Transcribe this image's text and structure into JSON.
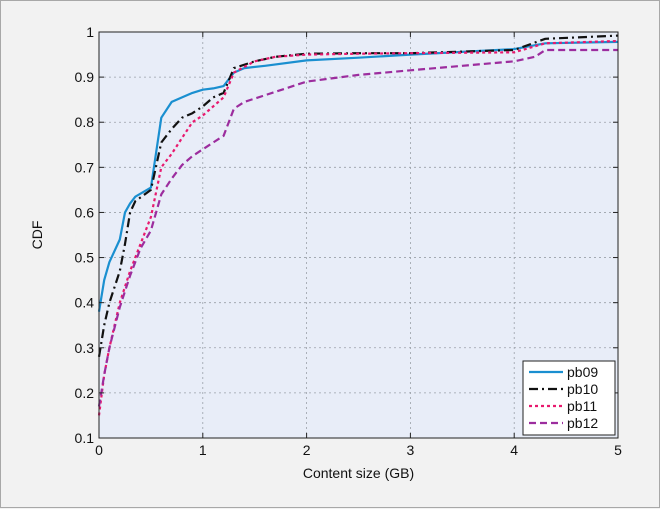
{
  "chart_data": {
    "type": "line",
    "title": "",
    "xlabel": "Content size (GB)",
    "ylabel": "CDF",
    "xlim": [
      0,
      5
    ],
    "ylim": [
      0.1,
      1.0
    ],
    "xticks": [
      0,
      1,
      2,
      3,
      4,
      5
    ],
    "yticks": [
      0.1,
      0.2,
      0.3,
      0.4,
      0.5,
      0.6,
      0.7,
      0.8,
      0.9,
      1
    ],
    "grid": true,
    "legend_position": "bottom-right",
    "plot_background": "#e8edf8",
    "series": [
      {
        "name": "pb09",
        "color": "#1a8fd0",
        "dash": "solid",
        "points": [
          [
            0,
            0.38
          ],
          [
            0.05,
            0.45
          ],
          [
            0.1,
            0.49
          ],
          [
            0.2,
            0.54
          ],
          [
            0.25,
            0.6
          ],
          [
            0.3,
            0.62
          ],
          [
            0.35,
            0.635
          ],
          [
            0.5,
            0.655
          ],
          [
            0.6,
            0.81
          ],
          [
            0.7,
            0.845
          ],
          [
            0.8,
            0.855
          ],
          [
            0.9,
            0.865
          ],
          [
            1.0,
            0.872
          ],
          [
            1.1,
            0.875
          ],
          [
            1.2,
            0.88
          ],
          [
            1.3,
            0.91
          ],
          [
            1.4,
            0.92
          ],
          [
            1.6,
            0.925
          ],
          [
            2.0,
            0.937
          ],
          [
            2.5,
            0.943
          ],
          [
            3.0,
            0.95
          ],
          [
            4.0,
            0.962
          ],
          [
            4.3,
            0.975
          ],
          [
            5.0,
            0.978
          ]
        ]
      },
      {
        "name": "pb10",
        "color": "#111111",
        "dash": "dashdot",
        "points": [
          [
            0,
            0.28
          ],
          [
            0.05,
            0.35
          ],
          [
            0.1,
            0.4
          ],
          [
            0.2,
            0.47
          ],
          [
            0.25,
            0.53
          ],
          [
            0.3,
            0.6
          ],
          [
            0.35,
            0.625
          ],
          [
            0.5,
            0.65
          ],
          [
            0.6,
            0.755
          ],
          [
            0.7,
            0.785
          ],
          [
            0.8,
            0.81
          ],
          [
            0.9,
            0.82
          ],
          [
            1.0,
            0.835
          ],
          [
            1.1,
            0.855
          ],
          [
            1.2,
            0.865
          ],
          [
            1.3,
            0.92
          ],
          [
            1.5,
            0.935
          ],
          [
            1.7,
            0.945
          ],
          [
            2.0,
            0.952
          ],
          [
            2.5,
            0.953
          ],
          [
            3.0,
            0.953
          ],
          [
            4.0,
            0.96
          ],
          [
            4.3,
            0.985
          ],
          [
            5.0,
            0.992
          ]
        ]
      },
      {
        "name": "pb11",
        "color": "#e8196e",
        "dash": "dot",
        "points": [
          [
            0,
            0.15
          ],
          [
            0.05,
            0.24
          ],
          [
            0.1,
            0.3
          ],
          [
            0.2,
            0.4
          ],
          [
            0.3,
            0.47
          ],
          [
            0.4,
            0.53
          ],
          [
            0.5,
            0.59
          ],
          [
            0.6,
            0.7
          ],
          [
            0.7,
            0.73
          ],
          [
            0.8,
            0.765
          ],
          [
            0.9,
            0.8
          ],
          [
            1.0,
            0.815
          ],
          [
            1.1,
            0.835
          ],
          [
            1.2,
            0.855
          ],
          [
            1.3,
            0.91
          ],
          [
            1.5,
            0.935
          ],
          [
            1.7,
            0.945
          ],
          [
            2.0,
            0.95
          ],
          [
            2.5,
            0.952
          ],
          [
            3.0,
            0.953
          ],
          [
            4.0,
            0.955
          ],
          [
            4.3,
            0.975
          ],
          [
            5.0,
            0.98
          ]
        ]
      },
      {
        "name": "pb12",
        "color": "#9c2d9e",
        "dash": "dashed",
        "points": [
          [
            0,
            0.17
          ],
          [
            0.05,
            0.24
          ],
          [
            0.1,
            0.3
          ],
          [
            0.2,
            0.39
          ],
          [
            0.3,
            0.46
          ],
          [
            0.4,
            0.52
          ],
          [
            0.5,
            0.56
          ],
          [
            0.6,
            0.64
          ],
          [
            0.7,
            0.675
          ],
          [
            0.8,
            0.705
          ],
          [
            0.9,
            0.725
          ],
          [
            1.0,
            0.74
          ],
          [
            1.1,
            0.755
          ],
          [
            1.2,
            0.77
          ],
          [
            1.3,
            0.83
          ],
          [
            1.4,
            0.845
          ],
          [
            1.6,
            0.86
          ],
          [
            1.8,
            0.875
          ],
          [
            2.0,
            0.89
          ],
          [
            2.5,
            0.905
          ],
          [
            3.0,
            0.915
          ],
          [
            3.5,
            0.925
          ],
          [
            4.0,
            0.935
          ],
          [
            4.2,
            0.945
          ],
          [
            4.3,
            0.96
          ],
          [
            5.0,
            0.96
          ]
        ]
      }
    ]
  }
}
